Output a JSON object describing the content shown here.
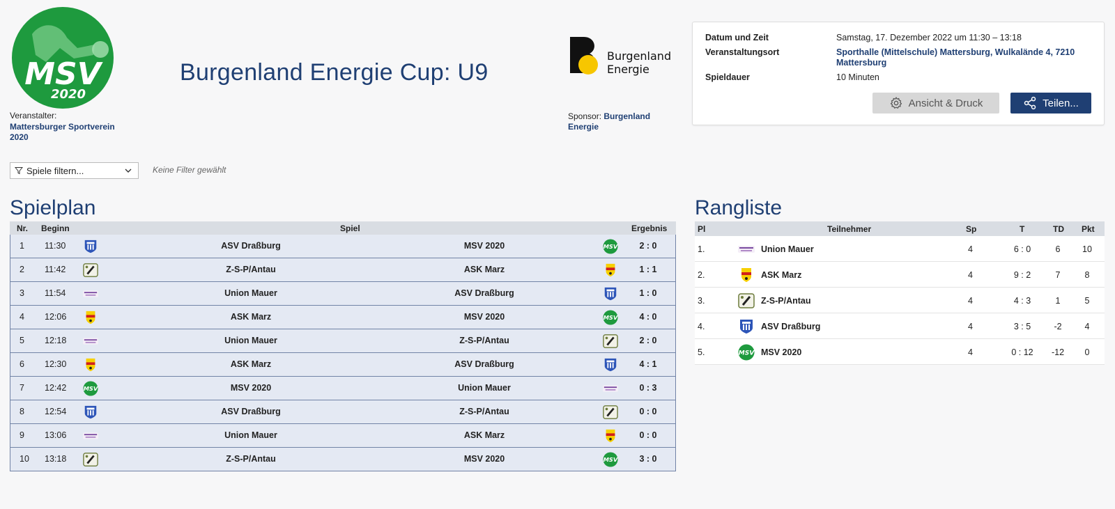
{
  "header": {
    "title": "Burgenland Energie Cup: U9",
    "organizer_label": "Veranstalter:",
    "organizer_name": "Mattersburger Sportverein 2020",
    "org_logo_text": "MSV",
    "org_logo_year": "2020",
    "sponsor_label": "Sponsor:",
    "sponsor_name": "Burgenland Energie",
    "sponsor_logo_line1": "Burgenland",
    "sponsor_logo_line2": "Energie"
  },
  "info": {
    "date_label": "Datum und Zeit",
    "date_value": "Samstag, 17. Dezember 2022 um 11:30 – 13:18",
    "venue_label": "Veranstaltungsort",
    "venue_value": "Sporthalle (Mittelschule) Mattersburg, Wulkalände 4, 7210 Mattersburg",
    "duration_label": "Spieldauer",
    "duration_value": "10 Minuten",
    "view_button": "Ansicht & Druck",
    "share_button": "Teilen..."
  },
  "filter": {
    "select_label": "Spiele filtern...",
    "note": "Keine Filter gewählt"
  },
  "schedule": {
    "heading": "Spielplan",
    "col_nr": "Nr.",
    "col_time": "Beginn",
    "col_game": "Spiel",
    "col_result": "Ergebnis",
    "rows": [
      {
        "nr": "1",
        "time": "11:30",
        "home": "ASV Draßburg",
        "away": "MSV 2020",
        "result": "2 : 0",
        "home_logo": "drassburg",
        "away_logo": "msv"
      },
      {
        "nr": "2",
        "time": "11:42",
        "home": "Z-S-P/Antau",
        "away": "ASK Marz",
        "result": "1 : 1",
        "home_logo": "zsp",
        "away_logo": "marz"
      },
      {
        "nr": "3",
        "time": "11:54",
        "home": "Union Mauer",
        "away": "ASV Draßburg",
        "result": "1 : 0",
        "home_logo": "mauer",
        "away_logo": "drassburg"
      },
      {
        "nr": "4",
        "time": "12:06",
        "home": "ASK Marz",
        "away": "MSV 2020",
        "result": "4 : 0",
        "home_logo": "marz",
        "away_logo": "msv"
      },
      {
        "nr": "5",
        "time": "12:18",
        "home": "Union Mauer",
        "away": "Z-S-P/Antau",
        "result": "2 : 0",
        "home_logo": "mauer",
        "away_logo": "zsp"
      },
      {
        "nr": "6",
        "time": "12:30",
        "home": "ASK Marz",
        "away": "ASV Draßburg",
        "result": "4 : 1",
        "home_logo": "marz",
        "away_logo": "drassburg"
      },
      {
        "nr": "7",
        "time": "12:42",
        "home": "MSV 2020",
        "away": "Union Mauer",
        "result": "0 : 3",
        "home_logo": "msv",
        "away_logo": "mauer"
      },
      {
        "nr": "8",
        "time": "12:54",
        "home": "ASV Draßburg",
        "away": "Z-S-P/Antau",
        "result": "0 : 0",
        "home_logo": "drassburg",
        "away_logo": "zsp"
      },
      {
        "nr": "9",
        "time": "13:06",
        "home": "Union Mauer",
        "away": "ASK Marz",
        "result": "0 : 0",
        "home_logo": "mauer",
        "away_logo": "marz"
      },
      {
        "nr": "10",
        "time": "13:18",
        "home": "Z-S-P/Antau",
        "away": "MSV 2020",
        "result": "3 : 0",
        "home_logo": "zsp",
        "away_logo": "msv"
      }
    ]
  },
  "ranking": {
    "heading": "Rangliste",
    "col_pl": "Pl",
    "col_team": "Teilnehmer",
    "col_sp": "Sp",
    "col_t": "T",
    "col_td": "TD",
    "col_pkt": "Pkt",
    "rows": [
      {
        "pl": "1.",
        "team": "Union Mauer",
        "sp": "4",
        "t": "6 : 0",
        "td": "6",
        "pkt": "10",
        "logo": "mauer"
      },
      {
        "pl": "2.",
        "team": "ASK Marz",
        "sp": "4",
        "t": "9 : 2",
        "td": "7",
        "pkt": "8",
        "logo": "marz"
      },
      {
        "pl": "3.",
        "team": "Z-S-P/Antau",
        "sp": "4",
        "t": "4 : 3",
        "td": "1",
        "pkt": "5",
        "logo": "zsp"
      },
      {
        "pl": "4.",
        "team": "ASV Draßburg",
        "sp": "4",
        "t": "3 : 5",
        "td": "-2",
        "pkt": "4",
        "logo": "drassburg"
      },
      {
        "pl": "5.",
        "team": "MSV 2020",
        "sp": "4",
        "t": "0 : 12",
        "td": "-12",
        "pkt": "0",
        "logo": "msv"
      }
    ]
  },
  "colors": {
    "brand_blue": "#1f3f73",
    "row_bg": "#e4e9f3",
    "msv_green": "#1e9a3e",
    "sponsor_yellow": "#f7c600"
  }
}
